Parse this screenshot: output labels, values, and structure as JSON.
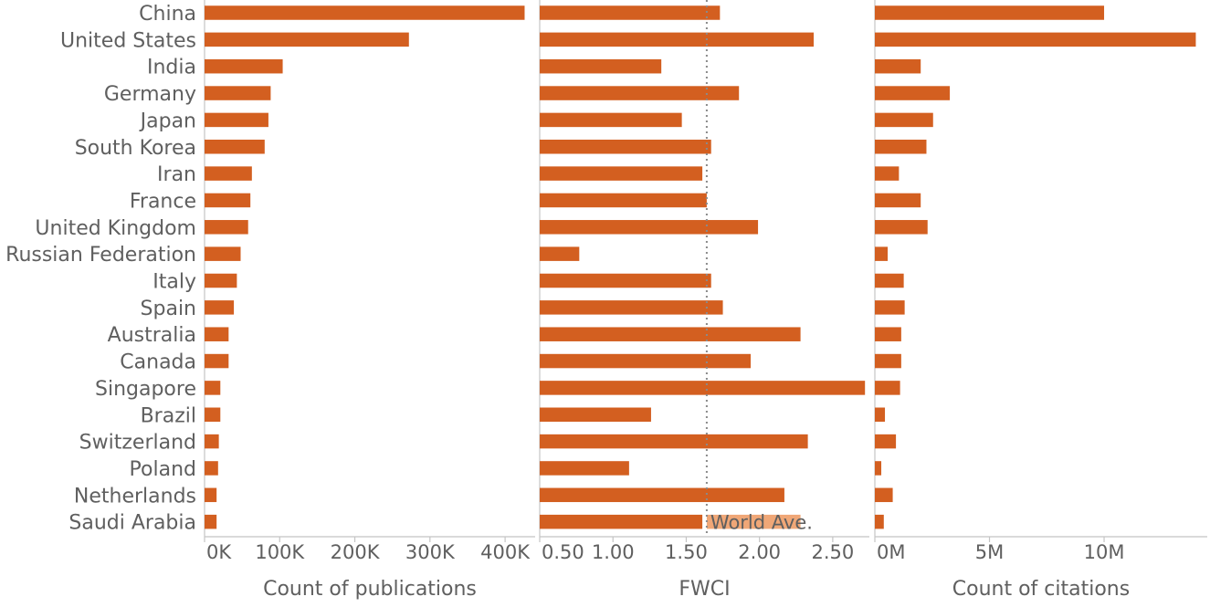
{
  "chart_data": [
    {
      "type": "bar",
      "orientation": "horizontal",
      "panel": "publications",
      "categories": [
        "China",
        "United States",
        "India",
        "Germany",
        "Japan",
        "South Korea",
        "Iran",
        "France",
        "United Kingdom",
        "Russian Federation",
        "Italy",
        "Spain",
        "Australia",
        "Canada",
        "Singapore",
        "Brazil",
        "Switzerland",
        "Poland",
        "Netherlands",
        "Saudi Arabia"
      ],
      "values": [
        426000,
        272000,
        104000,
        88000,
        85000,
        80000,
        63000,
        61000,
        58000,
        48000,
        43000,
        39000,
        32000,
        32000,
        21000,
        21000,
        19000,
        18000,
        16000,
        16000
      ],
      "xlim": [
        0,
        440000
      ],
      "ticks": [
        0,
        100000,
        200000,
        300000,
        400000
      ],
      "tick_labels": [
        "0K",
        "100K",
        "200K",
        "300K",
        "400K"
      ],
      "xlabel": "Count of publications",
      "color": "#d35f20"
    },
    {
      "type": "bar",
      "orientation": "horizontal",
      "panel": "fwci",
      "categories": [
        "China",
        "United States",
        "India",
        "Germany",
        "Japan",
        "South Korea",
        "Iran",
        "France",
        "United Kingdom",
        "Russian Federation",
        "Italy",
        "Spain",
        "Australia",
        "Canada",
        "Singapore",
        "Brazil",
        "Switzerland",
        "Poland",
        "Netherlands",
        "Saudi Arabia"
      ],
      "values": [
        1.73,
        2.37,
        1.33,
        1.86,
        1.47,
        1.67,
        1.61,
        1.64,
        1.99,
        0.77,
        1.67,
        1.75,
        2.28,
        1.94,
        2.72,
        1.26,
        2.33,
        1.11,
        2.17,
        1.61
      ],
      "xlim": [
        0.5,
        2.75
      ],
      "axis_origin": 0,
      "ticks": [
        0.5,
        1.0,
        1.5,
        2.0,
        2.5
      ],
      "tick_labels": [
        "0.50",
        "1.00",
        "1.50",
        "2.00",
        "2.50"
      ],
      "xlabel": "FWCI",
      "color": "#d35f20",
      "reference_line": {
        "value": 1.64,
        "label": "World Ave.",
        "label_band": [
          1.64,
          2.28
        ],
        "color": "#f0a777"
      }
    },
    {
      "type": "bar",
      "orientation": "horizontal",
      "panel": "citations",
      "categories": [
        "China",
        "United States",
        "India",
        "Germany",
        "Japan",
        "South Korea",
        "Iran",
        "France",
        "United Kingdom",
        "Russian Federation",
        "Italy",
        "Spain",
        "Australia",
        "Canada",
        "Singapore",
        "Brazil",
        "Switzerland",
        "Poland",
        "Netherlands",
        "Saudi Arabia"
      ],
      "values": [
        10000000,
        14000000,
        2000000,
        3270000,
        2540000,
        2250000,
        1050000,
        2000000,
        2300000,
        560000,
        1260000,
        1300000,
        1150000,
        1150000,
        1100000,
        440000,
        920000,
        280000,
        780000,
        390000
      ],
      "xlim": [
        0,
        14500000
      ],
      "ticks": [
        0,
        5000000,
        10000000
      ],
      "tick_labels": [
        "0M",
        "5M",
        "10M"
      ],
      "xlabel": "Count of citations",
      "color": "#d35f20"
    }
  ]
}
